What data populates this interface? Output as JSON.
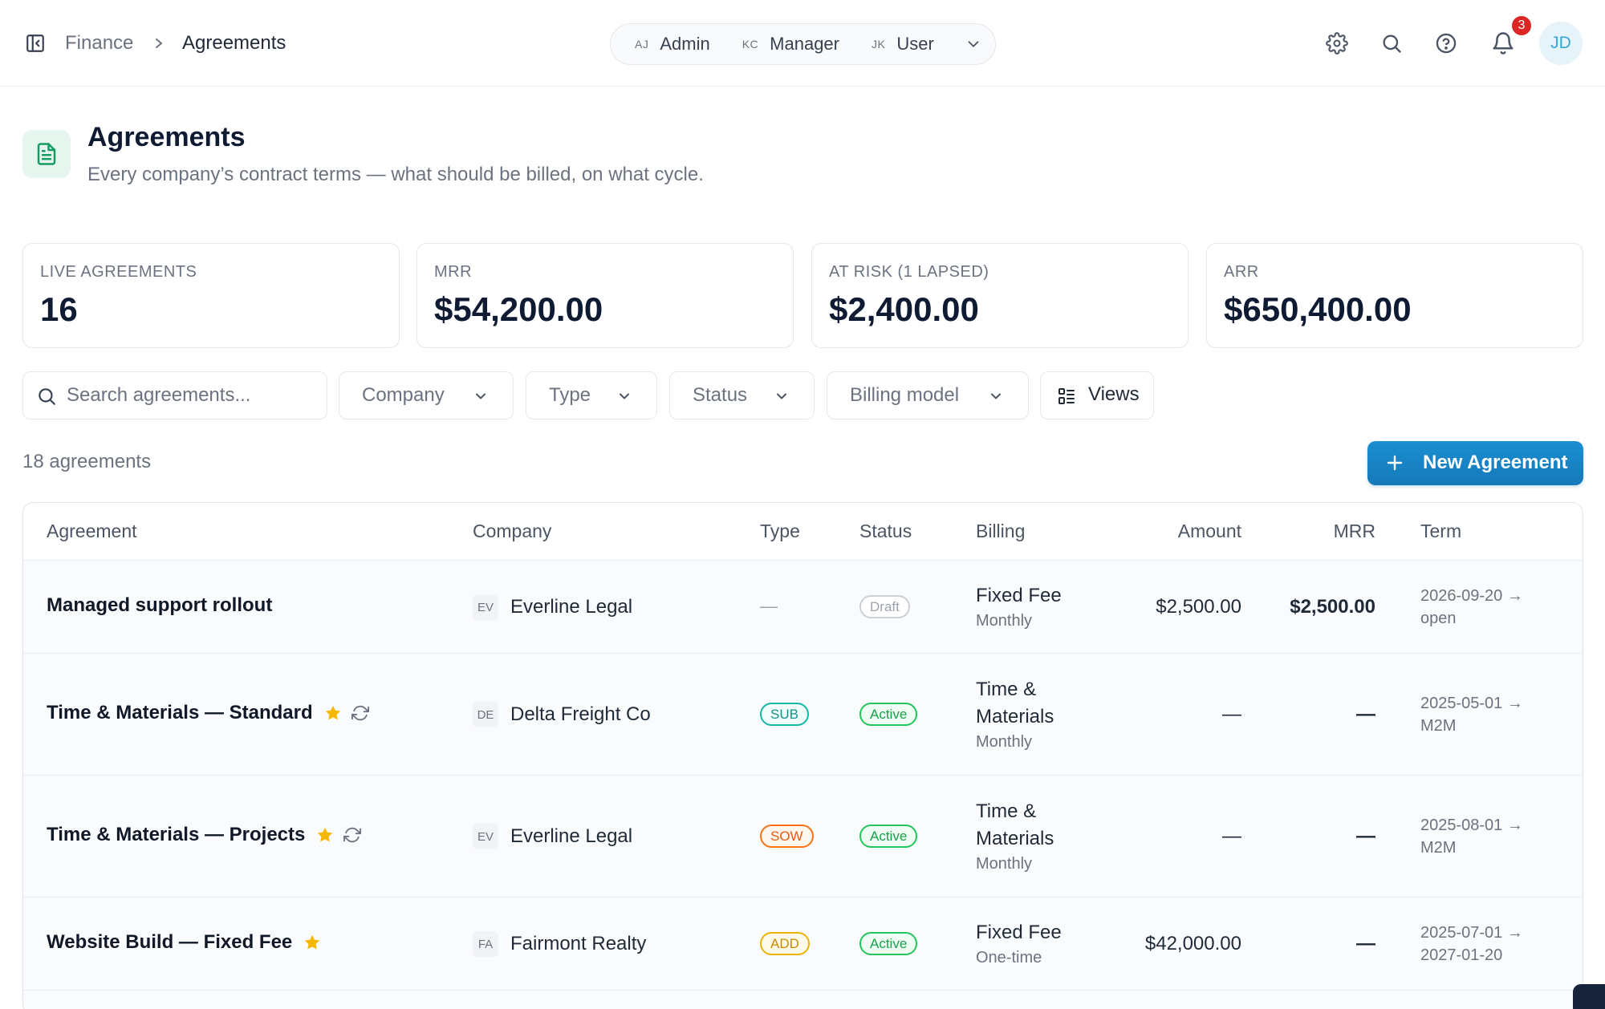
{
  "breadcrumb": {
    "parent": "Finance",
    "current": "Agreements"
  },
  "role_switcher": {
    "roles": [
      {
        "initials": "AJ",
        "label": "Admin"
      },
      {
        "initials": "KC",
        "label": "Manager"
      },
      {
        "initials": "JK",
        "label": "User"
      }
    ]
  },
  "header_icons": [
    "gear-icon",
    "search-icon",
    "help-icon",
    "bell-icon"
  ],
  "notifications": {
    "count": "3"
  },
  "user": {
    "initials": "JD"
  },
  "page": {
    "title": "Agreements",
    "subtitle": "Every company’s contract terms — what should be billed, on what cycle."
  },
  "kpis": [
    {
      "label": "LIVE AGREEMENTS",
      "value": "16"
    },
    {
      "label": "MRR",
      "value": "$54,200.00"
    },
    {
      "label": "AT RISK (1 LAPSED)",
      "value": "$2,400.00"
    },
    {
      "label": "ARR",
      "value": "$650,400.00"
    }
  ],
  "filters": {
    "search_placeholder": "Search agreements...",
    "company": "Company",
    "type": "Type",
    "status": "Status",
    "billing_model": "Billing model",
    "views": "Views"
  },
  "count_label": "18 agreements",
  "new_button": "New Agreement",
  "table": {
    "columns": [
      "Agreement",
      "Company",
      "Type",
      "Status",
      "Billing",
      "Amount",
      "MRR",
      "Term"
    ],
    "rows": [
      {
        "name": "Managed support rollout",
        "starred": false,
        "recurring": false,
        "company_initials": "EV",
        "company": "Everline Legal",
        "type": "—",
        "status": "Draft",
        "billing_lines": [
          "Fixed Fee"
        ],
        "billing_cycle": "Monthly",
        "amount": "$2,500.00",
        "mrr": "$2,500.00",
        "term_start": "2026-09-20 →",
        "term_end": "open"
      },
      {
        "name": "Time & Materials — Standard",
        "starred": true,
        "recurring": true,
        "company_initials": "DE",
        "company": "Delta Freight Co",
        "type": "SUB",
        "status": "Active",
        "billing_lines": [
          "Time &",
          "Materials"
        ],
        "billing_cycle": "Monthly",
        "amount": "—",
        "mrr": "—",
        "term_start": "2025-05-01 →",
        "term_end": "M2M"
      },
      {
        "name": "Time & Materials — Projects",
        "starred": true,
        "recurring": true,
        "company_initials": "EV",
        "company": "Everline Legal",
        "type": "SOW",
        "status": "Active",
        "billing_lines": [
          "Time &",
          "Materials"
        ],
        "billing_cycle": "Monthly",
        "amount": "—",
        "mrr": "—",
        "term_start": "2025-08-01 →",
        "term_end": "M2M"
      },
      {
        "name": "Website Build — Fixed Fee",
        "starred": true,
        "recurring": false,
        "company_initials": "FA",
        "company": "Fairmont Realty",
        "type": "ADD",
        "status": "Active",
        "billing_lines": [
          "Fixed Fee"
        ],
        "billing_cycle": "One-time",
        "amount": "$42,000.00",
        "mrr": "—",
        "term_start": "2025-07-01 →",
        "term_end": "2027-01-20"
      }
    ]
  },
  "colors": {
    "primary": "#1a8fd1",
    "active": "#22c55e",
    "draft": "#cbd0d6",
    "sub": "#14b8a6",
    "sow": "#f97316",
    "add": "#eab308",
    "star": "#f5b800",
    "badge": "#dc2626"
  }
}
